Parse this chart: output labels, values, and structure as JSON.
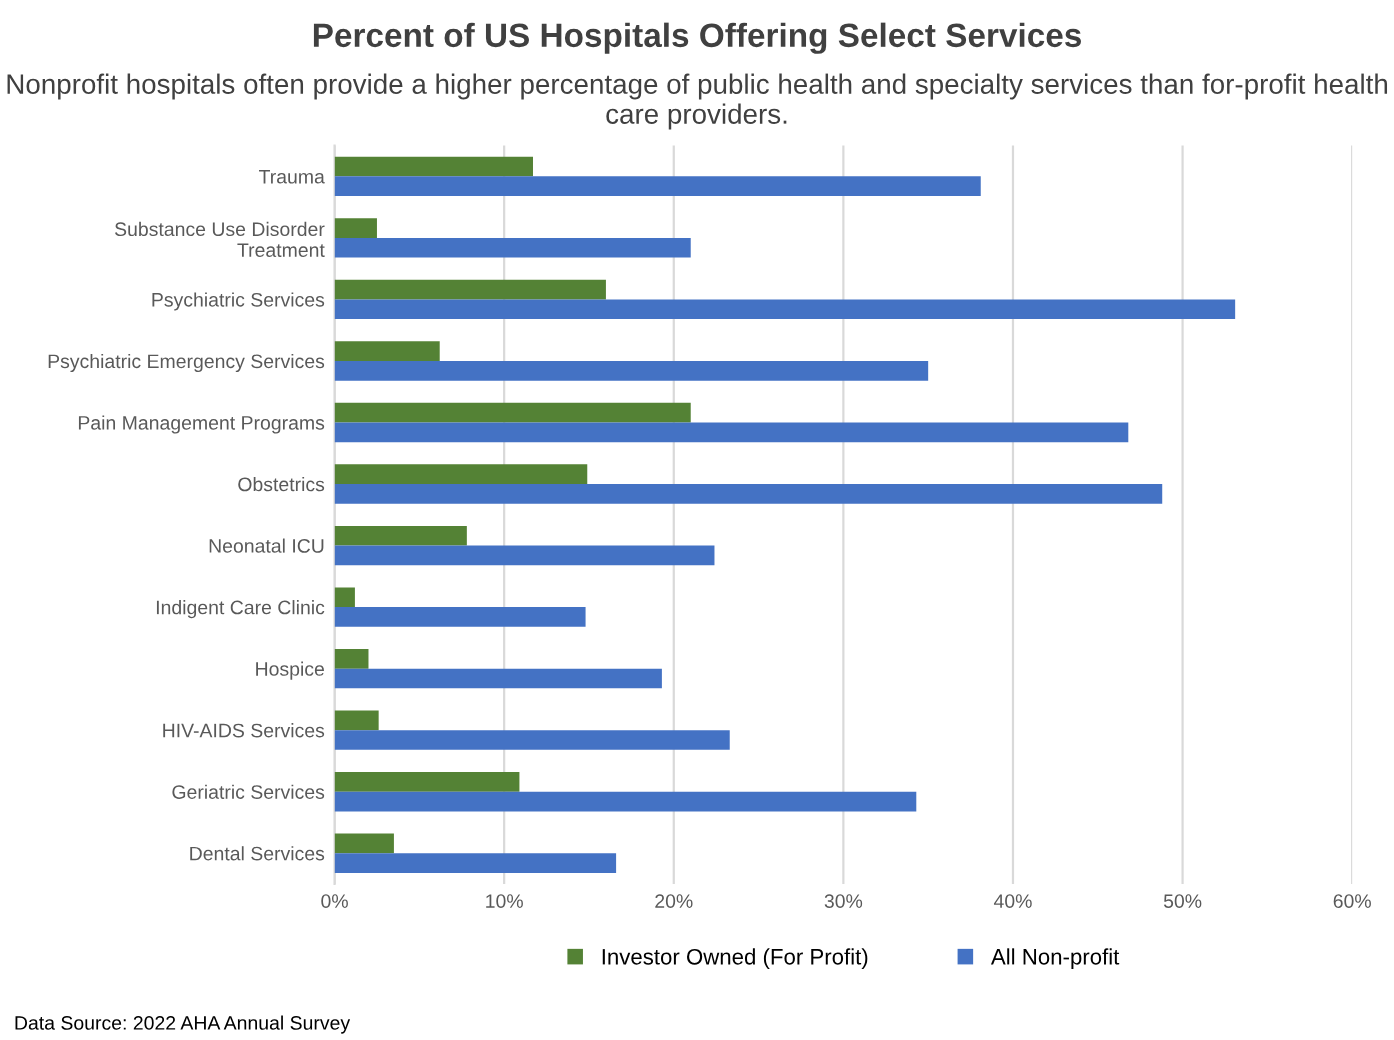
{
  "chart_data": {
    "type": "bar",
    "orientation": "horizontal",
    "title": "Percent of US Hospitals Offering Select Services",
    "subtitle": "Nonprofit hospitals often provide a higher percentage of public health and specialty services than for-profit health care providers.",
    "categories": [
      "Trauma",
      "Substance Use Disorder\nTreatment",
      "Psychiatric Services",
      "Psychiatric Emergency Services",
      "Pain Management Programs",
      "Obstetrics",
      "Neonatal ICU",
      "Indigent Care Clinic",
      "Hospice",
      "HIV-AIDS Services",
      "Geriatric Services",
      "Dental Services"
    ],
    "series": [
      {
        "name": "Investor Owned (For Profit)",
        "color": "#548235",
        "values": [
          11.7,
          2.5,
          16.0,
          6.2,
          21.0,
          14.9,
          7.8,
          1.2,
          2.0,
          2.6,
          10.9,
          3.5
        ]
      },
      {
        "name": "All Non-profit",
        "color": "#4472c4",
        "values": [
          38.1,
          21.0,
          53.1,
          35.0,
          46.8,
          48.8,
          22.4,
          14.8,
          19.3,
          23.3,
          34.3,
          16.6
        ]
      }
    ],
    "xlim": [
      0,
      60
    ],
    "xticks": [
      {
        "value": 0,
        "label": "0%"
      },
      {
        "value": 10,
        "label": "10%"
      },
      {
        "value": 20,
        "label": "20%"
      },
      {
        "value": 30,
        "label": "30%"
      },
      {
        "value": 40,
        "label": "40%"
      },
      {
        "value": 50,
        "label": "50%"
      },
      {
        "value": 60,
        "label": "60%"
      }
    ],
    "grid": "x",
    "legend": "bottom",
    "annotations": [
      "Data Source: 2022 AHA Annual Survey"
    ]
  }
}
